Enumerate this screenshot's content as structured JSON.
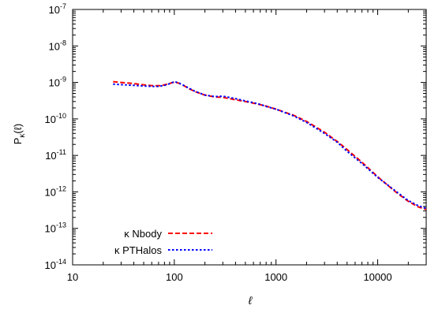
{
  "chart_data": {
    "type": "line",
    "title": "",
    "xlabel": "ℓ",
    "ylabel_main": "P",
    "ylabel_sub": "κ",
    "ylabel_suffix": "(ℓ)",
    "x_scale": "log",
    "y_scale": "log",
    "xlim": [
      10,
      30000
    ],
    "ylim": [
      1e-14,
      1e-07
    ],
    "x_ticks": [
      {
        "value": 10,
        "label": "10"
      },
      {
        "value": 100,
        "label": "100"
      },
      {
        "value": 1000,
        "label": "1000"
      },
      {
        "value": 10000,
        "label": "10000"
      }
    ],
    "y_ticks": [
      {
        "value": 1e-14,
        "base": "10",
        "exp": "-14"
      },
      {
        "value": 1e-13,
        "base": "10",
        "exp": "-13"
      },
      {
        "value": 1e-12,
        "base": "10",
        "exp": "-12"
      },
      {
        "value": 1e-11,
        "base": "10",
        "exp": "-11"
      },
      {
        "value": 1e-10,
        "base": "10",
        "exp": "-10"
      },
      {
        "value": 1e-09,
        "base": "10",
        "exp": "-9"
      },
      {
        "value": 1e-08,
        "base": "10",
        "exp": "-8"
      },
      {
        "value": 1e-07,
        "base": "10",
        "exp": "-7"
      }
    ],
    "grid": false,
    "legend_position": "bottom-left",
    "series": [
      {
        "name": "κ Nbody",
        "color": "#ff0000",
        "dash": "dashed",
        "x": [
          25,
          30,
          40,
          50,
          60,
          70,
          80,
          90,
          100,
          110,
          120,
          140,
          160,
          200,
          250,
          300,
          400,
          500,
          600,
          700,
          800,
          1000,
          1500,
          2000,
          3000,
          4000,
          5000,
          7000,
          10000,
          15000,
          20000,
          25000,
          30000
        ],
        "y": [
          1.05e-09,
          1e-09,
          9.3e-10,
          8.6e-10,
          8.2e-10,
          8.1e-10,
          8.6e-10,
          9.4e-10,
          1.02e-09,
          9.6e-10,
          8.6e-10,
          6.7e-10,
          5.6e-10,
          4.5e-10,
          4e-10,
          3.9e-10,
          3.35e-10,
          3e-10,
          2.7e-10,
          2.45e-10,
          2.25e-10,
          1.85e-10,
          1.25e-10,
          8.5e-11,
          4.3e-11,
          2.4e-11,
          1.45e-11,
          6.5e-12,
          2.6e-12,
          1e-12,
          5.5e-13,
          3.9e-13,
          3.3e-13
        ]
      },
      {
        "name": "κ PTHalos",
        "color": "#0000ff",
        "dash": "dotted",
        "x": [
          25,
          30,
          40,
          50,
          60,
          70,
          80,
          90,
          100,
          110,
          120,
          140,
          160,
          200,
          250,
          300,
          400,
          500,
          600,
          700,
          800,
          1000,
          1500,
          2000,
          3000,
          4000,
          5000,
          7000,
          10000,
          15000,
          20000,
          25000,
          30000
        ],
        "y": [
          9e-10,
          8.7e-10,
          8.3e-10,
          8e-10,
          7.8e-10,
          7.8e-10,
          8.3e-10,
          9.2e-10,
          1.05e-09,
          9.8e-10,
          8.7e-10,
          6.9e-10,
          5.7e-10,
          4.5e-10,
          4.1e-10,
          4.2e-10,
          3.6e-10,
          3.1e-10,
          2.8e-10,
          2.5e-10,
          2.2e-10,
          1.85e-10,
          1.2e-10,
          8e-11,
          4e-11,
          2.3e-11,
          1.3e-11,
          6e-12,
          2.5e-12,
          1.05e-12,
          5.8e-13,
          4.2e-13,
          3.5e-13
        ]
      }
    ]
  }
}
